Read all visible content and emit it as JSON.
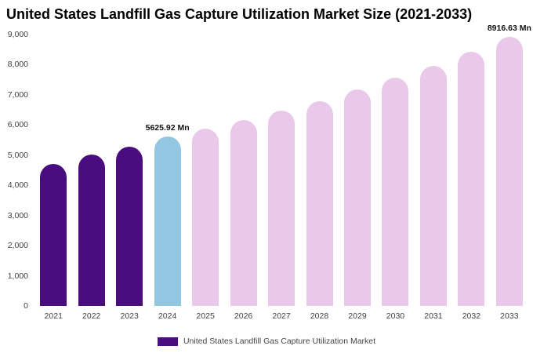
{
  "title": "United States Landfill Gas Capture Utilization Market Size (2021-2033)",
  "legend": {
    "label": "United States Landfill Gas Capture Utilization Market",
    "swatch_color": "#4A0D7F"
  },
  "colors": {
    "historical_bar": "#4A0D7F",
    "current_year_bar": "#93C6E1",
    "forecast_bar": "#EAC8EA",
    "background": "#FFFFFF"
  },
  "chart_data": {
    "type": "bar",
    "title": "United States Landfill Gas Capture Utilization Market Size (2021-2033)",
    "xlabel": "",
    "ylabel": "",
    "ylim": [
      0,
      9000
    ],
    "grid": false,
    "legend_position": "bottom",
    "categories": [
      "2021",
      "2022",
      "2023",
      "2024",
      "2025",
      "2026",
      "2027",
      "2028",
      "2029",
      "2030",
      "2031",
      "2032",
      "2033"
    ],
    "values": [
      4720,
      5010,
      5290,
      5625.92,
      5880,
      6170,
      6470,
      6790,
      7170,
      7560,
      7960,
      8420,
      8916.63
    ],
    "bar_colors": [
      "#4A0D7F",
      "#4A0D7F",
      "#4A0D7F",
      "#93C6E1",
      "#EAC8EA",
      "#EAC8EA",
      "#EAC8EA",
      "#EAC8EA",
      "#EAC8EA",
      "#EAC8EA",
      "#EAC8EA",
      "#EAC8EA",
      "#EAC8EA"
    ],
    "annotations": [
      {
        "index": 3,
        "text": "5625.92 Mn"
      },
      {
        "index": 12,
        "text": "8916.63 Mn"
      }
    ],
    "yticks": [
      {
        "value": 0,
        "label": "0"
      },
      {
        "value": 1000,
        "label": "1,000"
      },
      {
        "value": 2000,
        "label": "2,000"
      },
      {
        "value": 3000,
        "label": "3,000"
      },
      {
        "value": 4000,
        "label": "4,000"
      },
      {
        "value": 5000,
        "label": "5,000"
      },
      {
        "value": 6000,
        "label": "6,000"
      },
      {
        "value": 7000,
        "label": "7,000"
      },
      {
        "value": 8000,
        "label": "8,000"
      },
      {
        "value": 9000,
        "label": "9,000"
      }
    ]
  }
}
